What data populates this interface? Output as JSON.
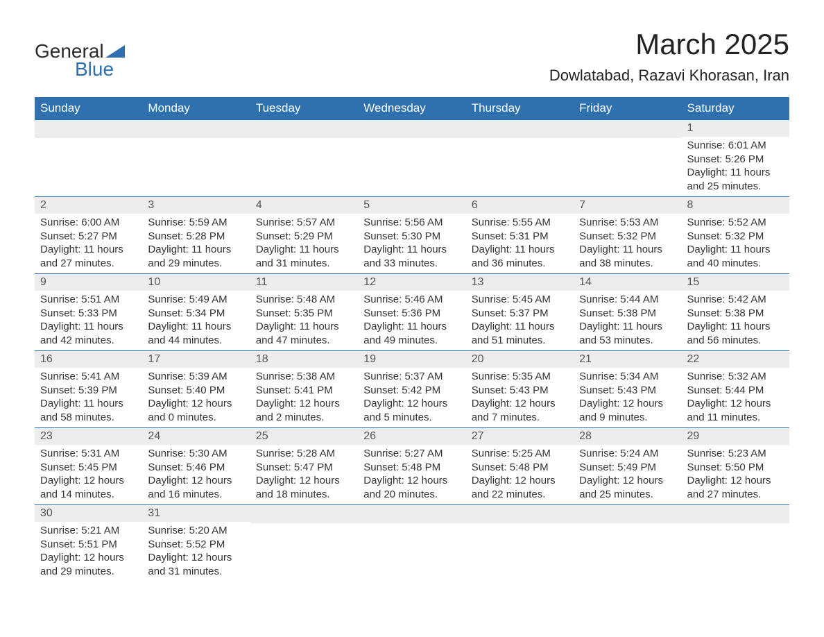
{
  "logo": {
    "text1": "General",
    "text2": "Blue",
    "triangle_color": "#2f6fb0"
  },
  "title": {
    "month_year": "March 2025",
    "location": "Dowlatabad, Razavi Khorasan, Iran"
  },
  "colors": {
    "header_bg": "#2f70af",
    "header_text": "#ffffff",
    "daynum_bg": "#ededed",
    "border": "#2f70af",
    "body_text": "#333333"
  },
  "weekdays": [
    "Sunday",
    "Monday",
    "Tuesday",
    "Wednesday",
    "Thursday",
    "Friday",
    "Saturday"
  ],
  "weeks": [
    [
      {
        "empty": true
      },
      {
        "empty": true
      },
      {
        "empty": true
      },
      {
        "empty": true
      },
      {
        "empty": true
      },
      {
        "empty": true
      },
      {
        "day": "1",
        "sunrise": "Sunrise: 6:01 AM",
        "sunset": "Sunset: 5:26 PM",
        "daylight1": "Daylight: 11 hours",
        "daylight2": "and 25 minutes."
      }
    ],
    [
      {
        "day": "2",
        "sunrise": "Sunrise: 6:00 AM",
        "sunset": "Sunset: 5:27 PM",
        "daylight1": "Daylight: 11 hours",
        "daylight2": "and 27 minutes."
      },
      {
        "day": "3",
        "sunrise": "Sunrise: 5:59 AM",
        "sunset": "Sunset: 5:28 PM",
        "daylight1": "Daylight: 11 hours",
        "daylight2": "and 29 minutes."
      },
      {
        "day": "4",
        "sunrise": "Sunrise: 5:57 AM",
        "sunset": "Sunset: 5:29 PM",
        "daylight1": "Daylight: 11 hours",
        "daylight2": "and 31 minutes."
      },
      {
        "day": "5",
        "sunrise": "Sunrise: 5:56 AM",
        "sunset": "Sunset: 5:30 PM",
        "daylight1": "Daylight: 11 hours",
        "daylight2": "and 33 minutes."
      },
      {
        "day": "6",
        "sunrise": "Sunrise: 5:55 AM",
        "sunset": "Sunset: 5:31 PM",
        "daylight1": "Daylight: 11 hours",
        "daylight2": "and 36 minutes."
      },
      {
        "day": "7",
        "sunrise": "Sunrise: 5:53 AM",
        "sunset": "Sunset: 5:32 PM",
        "daylight1": "Daylight: 11 hours",
        "daylight2": "and 38 minutes."
      },
      {
        "day": "8",
        "sunrise": "Sunrise: 5:52 AM",
        "sunset": "Sunset: 5:32 PM",
        "daylight1": "Daylight: 11 hours",
        "daylight2": "and 40 minutes."
      }
    ],
    [
      {
        "day": "9",
        "sunrise": "Sunrise: 5:51 AM",
        "sunset": "Sunset: 5:33 PM",
        "daylight1": "Daylight: 11 hours",
        "daylight2": "and 42 minutes."
      },
      {
        "day": "10",
        "sunrise": "Sunrise: 5:49 AM",
        "sunset": "Sunset: 5:34 PM",
        "daylight1": "Daylight: 11 hours",
        "daylight2": "and 44 minutes."
      },
      {
        "day": "11",
        "sunrise": "Sunrise: 5:48 AM",
        "sunset": "Sunset: 5:35 PM",
        "daylight1": "Daylight: 11 hours",
        "daylight2": "and 47 minutes."
      },
      {
        "day": "12",
        "sunrise": "Sunrise: 5:46 AM",
        "sunset": "Sunset: 5:36 PM",
        "daylight1": "Daylight: 11 hours",
        "daylight2": "and 49 minutes."
      },
      {
        "day": "13",
        "sunrise": "Sunrise: 5:45 AM",
        "sunset": "Sunset: 5:37 PM",
        "daylight1": "Daylight: 11 hours",
        "daylight2": "and 51 minutes."
      },
      {
        "day": "14",
        "sunrise": "Sunrise: 5:44 AM",
        "sunset": "Sunset: 5:38 PM",
        "daylight1": "Daylight: 11 hours",
        "daylight2": "and 53 minutes."
      },
      {
        "day": "15",
        "sunrise": "Sunrise: 5:42 AM",
        "sunset": "Sunset: 5:38 PM",
        "daylight1": "Daylight: 11 hours",
        "daylight2": "and 56 minutes."
      }
    ],
    [
      {
        "day": "16",
        "sunrise": "Sunrise: 5:41 AM",
        "sunset": "Sunset: 5:39 PM",
        "daylight1": "Daylight: 11 hours",
        "daylight2": "and 58 minutes."
      },
      {
        "day": "17",
        "sunrise": "Sunrise: 5:39 AM",
        "sunset": "Sunset: 5:40 PM",
        "daylight1": "Daylight: 12 hours",
        "daylight2": "and 0 minutes."
      },
      {
        "day": "18",
        "sunrise": "Sunrise: 5:38 AM",
        "sunset": "Sunset: 5:41 PM",
        "daylight1": "Daylight: 12 hours",
        "daylight2": "and 2 minutes."
      },
      {
        "day": "19",
        "sunrise": "Sunrise: 5:37 AM",
        "sunset": "Sunset: 5:42 PM",
        "daylight1": "Daylight: 12 hours",
        "daylight2": "and 5 minutes."
      },
      {
        "day": "20",
        "sunrise": "Sunrise: 5:35 AM",
        "sunset": "Sunset: 5:43 PM",
        "daylight1": "Daylight: 12 hours",
        "daylight2": "and 7 minutes."
      },
      {
        "day": "21",
        "sunrise": "Sunrise: 5:34 AM",
        "sunset": "Sunset: 5:43 PM",
        "daylight1": "Daylight: 12 hours",
        "daylight2": "and 9 minutes."
      },
      {
        "day": "22",
        "sunrise": "Sunrise: 5:32 AM",
        "sunset": "Sunset: 5:44 PM",
        "daylight1": "Daylight: 12 hours",
        "daylight2": "and 11 minutes."
      }
    ],
    [
      {
        "day": "23",
        "sunrise": "Sunrise: 5:31 AM",
        "sunset": "Sunset: 5:45 PM",
        "daylight1": "Daylight: 12 hours",
        "daylight2": "and 14 minutes."
      },
      {
        "day": "24",
        "sunrise": "Sunrise: 5:30 AM",
        "sunset": "Sunset: 5:46 PM",
        "daylight1": "Daylight: 12 hours",
        "daylight2": "and 16 minutes."
      },
      {
        "day": "25",
        "sunrise": "Sunrise: 5:28 AM",
        "sunset": "Sunset: 5:47 PM",
        "daylight1": "Daylight: 12 hours",
        "daylight2": "and 18 minutes."
      },
      {
        "day": "26",
        "sunrise": "Sunrise: 5:27 AM",
        "sunset": "Sunset: 5:48 PM",
        "daylight1": "Daylight: 12 hours",
        "daylight2": "and 20 minutes."
      },
      {
        "day": "27",
        "sunrise": "Sunrise: 5:25 AM",
        "sunset": "Sunset: 5:48 PM",
        "daylight1": "Daylight: 12 hours",
        "daylight2": "and 22 minutes."
      },
      {
        "day": "28",
        "sunrise": "Sunrise: 5:24 AM",
        "sunset": "Sunset: 5:49 PM",
        "daylight1": "Daylight: 12 hours",
        "daylight2": "and 25 minutes."
      },
      {
        "day": "29",
        "sunrise": "Sunrise: 5:23 AM",
        "sunset": "Sunset: 5:50 PM",
        "daylight1": "Daylight: 12 hours",
        "daylight2": "and 27 minutes."
      }
    ],
    [
      {
        "day": "30",
        "sunrise": "Sunrise: 5:21 AM",
        "sunset": "Sunset: 5:51 PM",
        "daylight1": "Daylight: 12 hours",
        "daylight2": "and 29 minutes."
      },
      {
        "day": "31",
        "sunrise": "Sunrise: 5:20 AM",
        "sunset": "Sunset: 5:52 PM",
        "daylight1": "Daylight: 12 hours",
        "daylight2": "and 31 minutes."
      },
      {
        "empty": true
      },
      {
        "empty": true
      },
      {
        "empty": true
      },
      {
        "empty": true
      },
      {
        "empty": true
      }
    ]
  ]
}
